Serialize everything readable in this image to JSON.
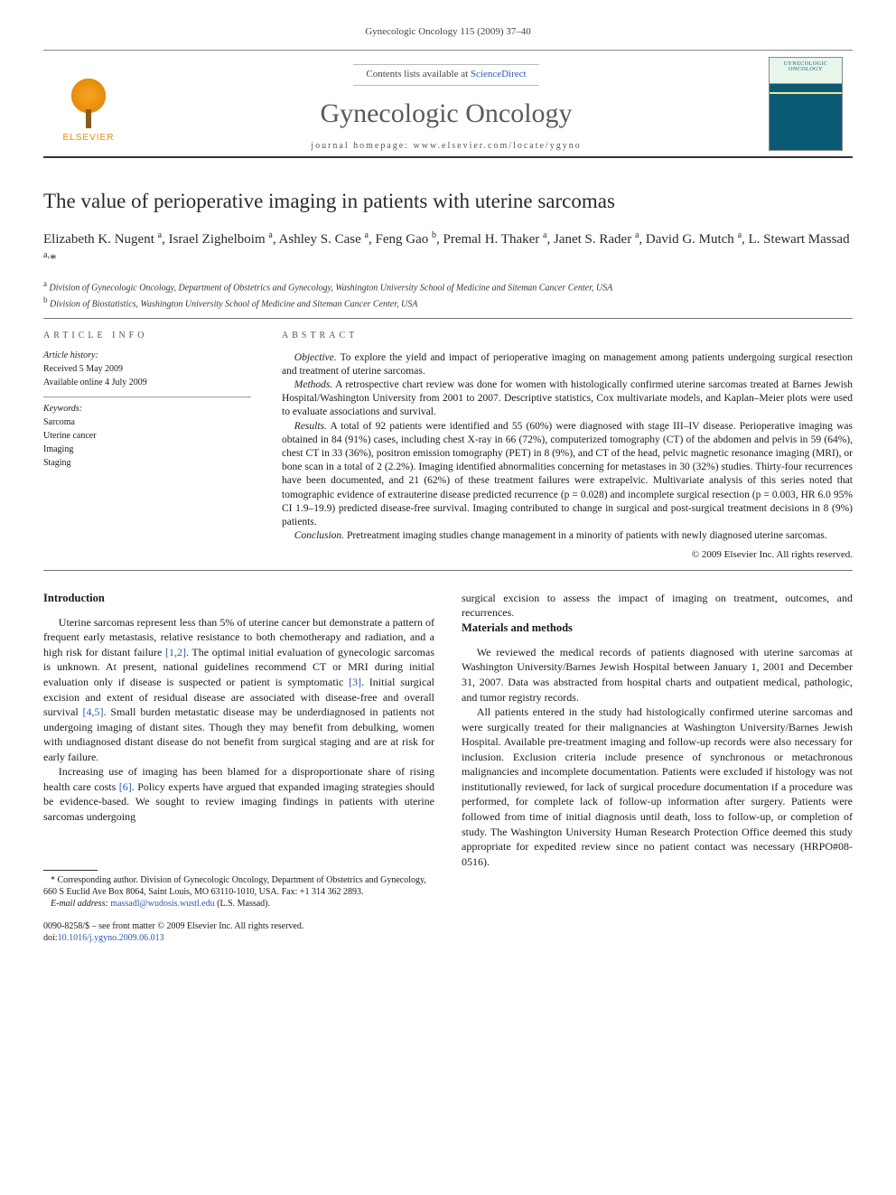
{
  "running_head": "Gynecologic Oncology 115 (2009) 37–40",
  "masthead": {
    "contents_prefix": "Contents lists available at ",
    "contents_link": "ScienceDirect",
    "journal_name": "Gynecologic Oncology",
    "homepage_prefix": "journal homepage: ",
    "homepage_url": "www.elsevier.com/locate/ygyno",
    "publisher_word": "ELSEVIER",
    "cover_title": "GYNECOLOGIC ONCOLOGY"
  },
  "article": {
    "title": "The value of perioperative imaging in patients with uterine sarcomas",
    "authors_html": "Elizabeth K. Nugent <sup>a</sup>, Israel Zighelboim <sup>a</sup>, Ashley S. Case <sup>a</sup>, Feng Gao <sup>b</sup>, Premal H. Thaker <sup>a</sup>, Janet S. Rader <sup>a</sup>, David G. Mutch <sup>a</sup>, L. Stewart Massad <sup>a,</sup><span class='star'>*</span>",
    "affiliations": {
      "a": "Division of Gynecologic Oncology, Department of Obstetrics and Gynecology, Washington University School of Medicine and Siteman Cancer Center, USA",
      "b": "Division of Biostatistics, Washington University School of Medicine and Siteman Cancer Center, USA"
    }
  },
  "article_info": {
    "section_label": "article info",
    "history_head": "Article history:",
    "received": "Received 5 May 2009",
    "online": "Available online 4 July 2009",
    "keywords_head": "Keywords:",
    "keywords": [
      "Sarcoma",
      "Uterine cancer",
      "Imaging",
      "Staging"
    ]
  },
  "abstract": {
    "section_label": "abstract",
    "objective_label": "Objective.",
    "objective": " To explore the yield and impact of perioperative imaging on management among patients undergoing surgical resection and treatment of uterine sarcomas.",
    "methods_label": "Methods.",
    "methods": " A retrospective chart review was done for women with histologically confirmed uterine sarcomas treated at Barnes Jewish Hospital/Washington University from 2001 to 2007. Descriptive statistics, Cox multivariate models, and Kaplan–Meier plots were used to evaluate associations and survival.",
    "results_label": "Results.",
    "results": " A total of 92 patients were identified and 55 (60%) were diagnosed with stage III–IV disease. Perioperative imaging was obtained in 84 (91%) cases, including chest X-ray in 66 (72%), computerized tomography (CT) of the abdomen and pelvis in 59 (64%), chest CT in 33 (36%), positron emission tomography (PET) in 8 (9%), and CT of the head, pelvic magnetic resonance imaging (MRI), or bone scan in a total of 2 (2.2%). Imaging identified abnormalities concerning for metastases in 30 (32%) studies. Thirty-four recurrences have been documented, and 21 (62%) of these treatment failures were extrapelvic. Multivariate analysis of this series noted that tomographic evidence of extrauterine disease predicted recurrence (p = 0.028) and incomplete surgical resection (p = 0.003, HR 6.0 95% CI 1.9–19.9) predicted disease-free survival. Imaging contributed to change in surgical and post-surgical treatment decisions in 8 (9%) patients.",
    "conclusion_label": "Conclusion.",
    "conclusion": " Pretreatment imaging studies change management in a minority of patients with newly diagnosed uterine sarcomas.",
    "copyright": "© 2009 Elsevier Inc. All rights reserved."
  },
  "body": {
    "intro_head": "Introduction",
    "intro_p1_a": "Uterine sarcomas represent less than 5% of uterine cancer but demonstrate a pattern of frequent early metastasis, relative resistance to both chemotherapy and radiation, and a high risk for distant failure ",
    "intro_p1_ref1": "[1,2]",
    "intro_p1_b": ". The optimal initial evaluation of gynecologic sarcomas is unknown. At present, national guidelines recommend CT or MRI during initial evaluation only if disease is suspected or patient is symptomatic ",
    "intro_p1_ref2": "[3]",
    "intro_p1_c": ". Initial surgical excision and extent of residual disease are associated with disease-free and overall survival ",
    "intro_p1_ref3": "[4,5]",
    "intro_p1_d": ". Small burden metastatic disease may be underdiagnosed in patients not undergoing imaging of distant sites. Though they may benefit from debulking, women with undiagnosed distant disease do not benefit from surgical staging and are at risk for early failure.",
    "intro_p2_a": "Increasing use of imaging has been blamed for a disproportionate share of rising health care costs ",
    "intro_p2_ref": "[6]",
    "intro_p2_b": ". Policy experts have argued that expanded imaging strategies should be evidence-based. We sought to review imaging findings in patients with uterine sarcomas undergoing ",
    "intro_p2_cont": "surgical excision to assess the impact of imaging on treatment, outcomes, and recurrences.",
    "mm_head": "Materials and methods",
    "mm_p1": "We reviewed the medical records of patients diagnosed with uterine sarcomas at Washington University/Barnes Jewish Hospital between January 1, 2001 and December 31, 2007. Data was abstracted from hospital charts and outpatient medical, pathologic, and tumor registry records.",
    "mm_p2": "All patients entered in the study had histologically confirmed uterine sarcomas and were surgically treated for their malignancies at Washington University/Barnes Jewish Hospital. Available pre-treatment imaging and follow-up records were also necessary for inclusion. Exclusion criteria include presence of synchronous or metachronous malignancies and incomplete documentation. Patients were excluded if histology was not institutionally reviewed, for lack of surgical procedure documentation if a procedure was performed, for complete lack of follow-up information after surgery. Patients were followed from time of initial diagnosis until death, loss to follow-up, or completion of study. The Washington University Human Research Protection Office deemed this study appropriate for expedited review since no patient contact was necessary (HRPO#08-0516)."
  },
  "footnotes": {
    "corr": "* Corresponding author. Division of Gynecologic Oncology, Department of Obstetrics and Gynecology, 660 S Euclid Ave Box 8064, Saint Louis, MO 63110-1010, USA. Fax: +1 314 362 2893.",
    "email_label": "E-mail address:",
    "email": "massadl@wudosis.wustl.edu",
    "email_who": " (L.S. Massad)."
  },
  "doi_block": {
    "line1": "0090-8258/$ – see front matter © 2009 Elsevier Inc. All rights reserved.",
    "line2_prefix": "doi:",
    "line2_doi": "10.1016/j.ygyno.2009.06.013"
  },
  "colors": {
    "link": "#2a5aa8",
    "text": "#1a1a1a",
    "rule": "#777777",
    "publisher_orange": "#e78b0a",
    "cover_teal": "#0b5a74"
  }
}
